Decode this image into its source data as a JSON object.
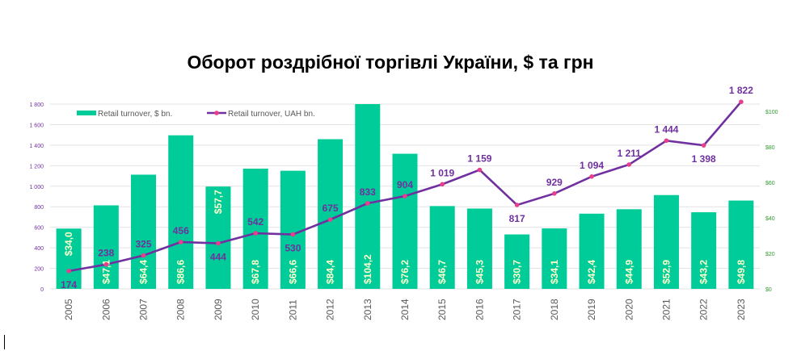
{
  "chart_data": {
    "type": "bar+line",
    "title": "Оборот роздрібної торгівлі України, $ та грн",
    "categories": [
      "2005",
      "2006",
      "2007",
      "2008",
      "2009",
      "2010",
      "2011",
      "2012",
      "2013",
      "2014",
      "2015",
      "2016",
      "2017",
      "2018",
      "2019",
      "2020",
      "2021",
      "2022",
      "2023"
    ],
    "series": [
      {
        "name": "Retail turnover, $ bn.",
        "type": "bar",
        "axis": "right",
        "color": "#00CC99",
        "values": [
          34.0,
          47.1,
          64.4,
          86.6,
          57.7,
          67.8,
          66.6,
          84.4,
          104.2,
          76.2,
          46.7,
          45.3,
          30.7,
          34.1,
          42.4,
          44.9,
          52.9,
          43.2,
          49.8
        ],
        "labels": [
          "$34,0",
          "$47,1",
          "$64,4",
          "$86,6",
          "$57,7",
          "$67,8",
          "$66,6",
          "$84,4",
          "$104,2",
          "$76,2",
          "$46,7",
          "$45,3",
          "$30,7",
          "$34,1",
          "$42,4",
          "$44,9",
          "$52,9",
          "$43,2",
          "$49,8"
        ]
      },
      {
        "name": "Retail turnover, UAH bn.",
        "type": "line",
        "axis": "left",
        "color": "#7030A0",
        "marker_color": "#E83E8C",
        "values": [
          174,
          238,
          325,
          456,
          444,
          542,
          530,
          675,
          833,
          904,
          1019,
          1159,
          817,
          929,
          1094,
          1211,
          1444,
          1398,
          1822
        ],
        "labels": [
          "174",
          "238",
          "325",
          "456",
          "444",
          "542",
          "530",
          "675",
          "833",
          "904",
          "1 019",
          "1 159",
          "817",
          "929",
          "1 094",
          "1 211",
          "1 444",
          "1 398",
          "1 822"
        ],
        "label_below": [
          false,
          false,
          false,
          false,
          true,
          false,
          true,
          false,
          false,
          false,
          false,
          false,
          true,
          false,
          false,
          false,
          false,
          true,
          false
        ]
      }
    ],
    "left_axis": {
      "range": [
        0,
        1800
      ],
      "ticks": [
        "0",
        "200",
        "400",
        "600",
        "800",
        "1 000",
        "1 200",
        "1 400",
        "1 600",
        "1 800"
      ],
      "tick_values": [
        0,
        200,
        400,
        600,
        800,
        1000,
        1200,
        1400,
        1600,
        1800
      ],
      "color": "#7030A0"
    },
    "right_axis": {
      "range": [
        0,
        104.2
      ],
      "ticks": [
        "$0",
        "$20",
        "$40",
        "$60",
        "$80",
        "$100"
      ],
      "tick_values": [
        0,
        20,
        40,
        60,
        80,
        100
      ],
      "color": "#339933"
    },
    "grid": true,
    "legend": "top-left"
  }
}
